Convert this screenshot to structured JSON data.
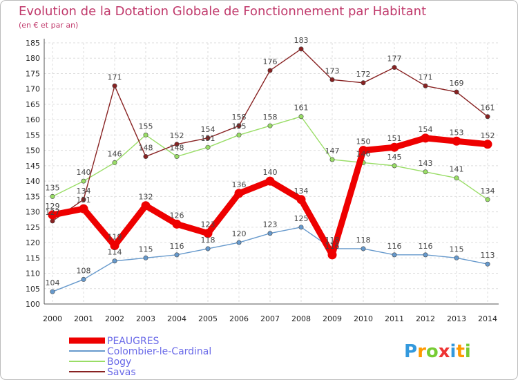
{
  "chart_data": {
    "type": "line",
    "title": "Evolution de la Dotation Globale de Fonctionnement par Habitant",
    "subtitle": "(en € et par an)",
    "xlabel": "",
    "ylabel": "",
    "x": [
      "2000",
      "2001",
      "2002",
      "2003",
      "2004",
      "2005",
      "2006",
      "2007",
      "2008",
      "2009",
      "2010",
      "2011",
      "2012",
      "2013",
      "2014"
    ],
    "ylim": [
      100,
      185
    ],
    "yticks": [
      "100",
      "105",
      "110",
      "115",
      "120",
      "125",
      "130",
      "135",
      "140",
      "145",
      "150",
      "155",
      "160",
      "165",
      "170",
      "175",
      "180",
      "185"
    ],
    "grid": true,
    "legend_position": "bottom-left",
    "series": [
      {
        "name": "PEAUGRES",
        "color": "#ee0000",
        "values": [
          129,
          131,
          119,
          132,
          126,
          123,
          136,
          140,
          134,
          116,
          150,
          151,
          154,
          153,
          152
        ],
        "labels": [
          "129",
          "131",
          "119",
          "132",
          "126",
          "123",
          "136",
          "140",
          "134",
          "116",
          "150",
          "151",
          "154",
          "153",
          "152"
        ]
      },
      {
        "name": "Colombier-le-Cardinal",
        "color": "#6699cc",
        "values": [
          104,
          108,
          114,
          115,
          116,
          118,
          120,
          123,
          125,
          118,
          118,
          116,
          116,
          115,
          113
        ],
        "labels": [
          "104",
          "108",
          "114",
          "115",
          "116",
          "118",
          "120",
          "123",
          "125",
          "118",
          "118",
          "116",
          "116",
          "115",
          "113"
        ]
      },
      {
        "name": "Bogy",
        "color": "#99dd66",
        "values": [
          135,
          140,
          146,
          155,
          148,
          151,
          155,
          158,
          161,
          147,
          146,
          145,
          143,
          141,
          134
        ],
        "labels": [
          "135",
          "140",
          "146",
          "155",
          "148",
          "151",
          "155",
          "158",
          "161",
          "147",
          "146",
          "145",
          "143",
          "141",
          "134"
        ]
      },
      {
        "name": "Savas",
        "color": "#882222",
        "values": [
          127,
          134,
          171,
          148,
          152,
          154,
          158,
          176,
          183,
          173,
          172,
          177,
          171,
          169,
          161
        ],
        "labels": [
          "127",
          "134",
          "171",
          "148",
          "152",
          "154",
          "158",
          "176",
          "183",
          "173",
          "172",
          "177",
          "171",
          "169",
          "161"
        ]
      }
    ]
  },
  "logo": {
    "text": "Proxiti"
  }
}
